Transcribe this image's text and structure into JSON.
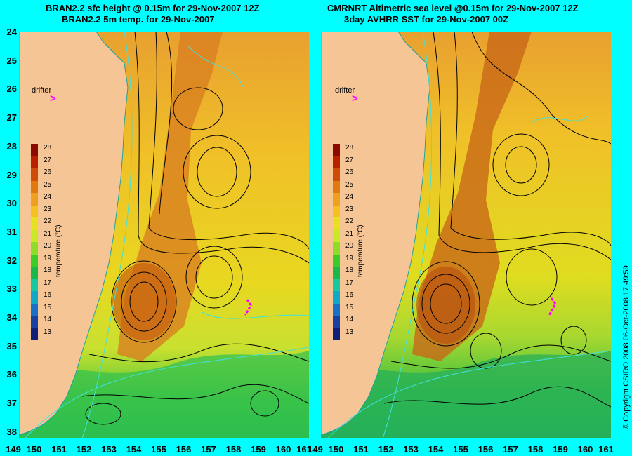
{
  "panels": [
    {
      "title_line1": "BRAN2.2 sfc height @ 0.15m for 29-Nov-2007 12Z",
      "title_line2": "BRAN2.2 5m temp. for 29-Nov-2007"
    },
    {
      "title_line1": "CMRNRT Altimetric sea level  @0.15m  for 29-Nov-2007 12Z",
      "title_line2": "3day AVHRR SST for 29-Nov-2007 00Z"
    }
  ],
  "y_axis_labels": [
    "24",
    "25",
    "26",
    "27",
    "28",
    "29",
    "30",
    "31",
    "32",
    "33",
    "34",
    "35",
    "36",
    "37",
    "38"
  ],
  "x_axis_labels": [
    "149",
    "150",
    "151",
    "152",
    "153",
    "154",
    "155",
    "156",
    "157",
    "158",
    "159",
    "160",
    "161"
  ],
  "colorbar": {
    "title": "temperature (°C)",
    "ticks": [
      "28",
      "27",
      "26",
      "25",
      "24",
      "23",
      "22",
      "21",
      "20",
      "19",
      "18",
      "17",
      "16",
      "15",
      "14",
      "13"
    ],
    "colors": [
      "#8a0a00",
      "#b82000",
      "#d04a08",
      "#e07a10",
      "#f0a020",
      "#f5c020",
      "#e8e020",
      "#c8e828",
      "#8cdc28",
      "#3ccc28",
      "#1ab84a",
      "#18c8a0",
      "#10a8c8",
      "#1870c8",
      "#1840a0",
      "#102078"
    ]
  },
  "drifter_label": "drifter",
  "copyright": "© Copyright CSIRO 2008   06-Oct-2008 17:49:59",
  "colors": {
    "background": "#00FFFF",
    "land": "#F5C596",
    "drifter": "#FF00FF",
    "contour": "#000000",
    "sst_contour": "#40E0E0"
  }
}
